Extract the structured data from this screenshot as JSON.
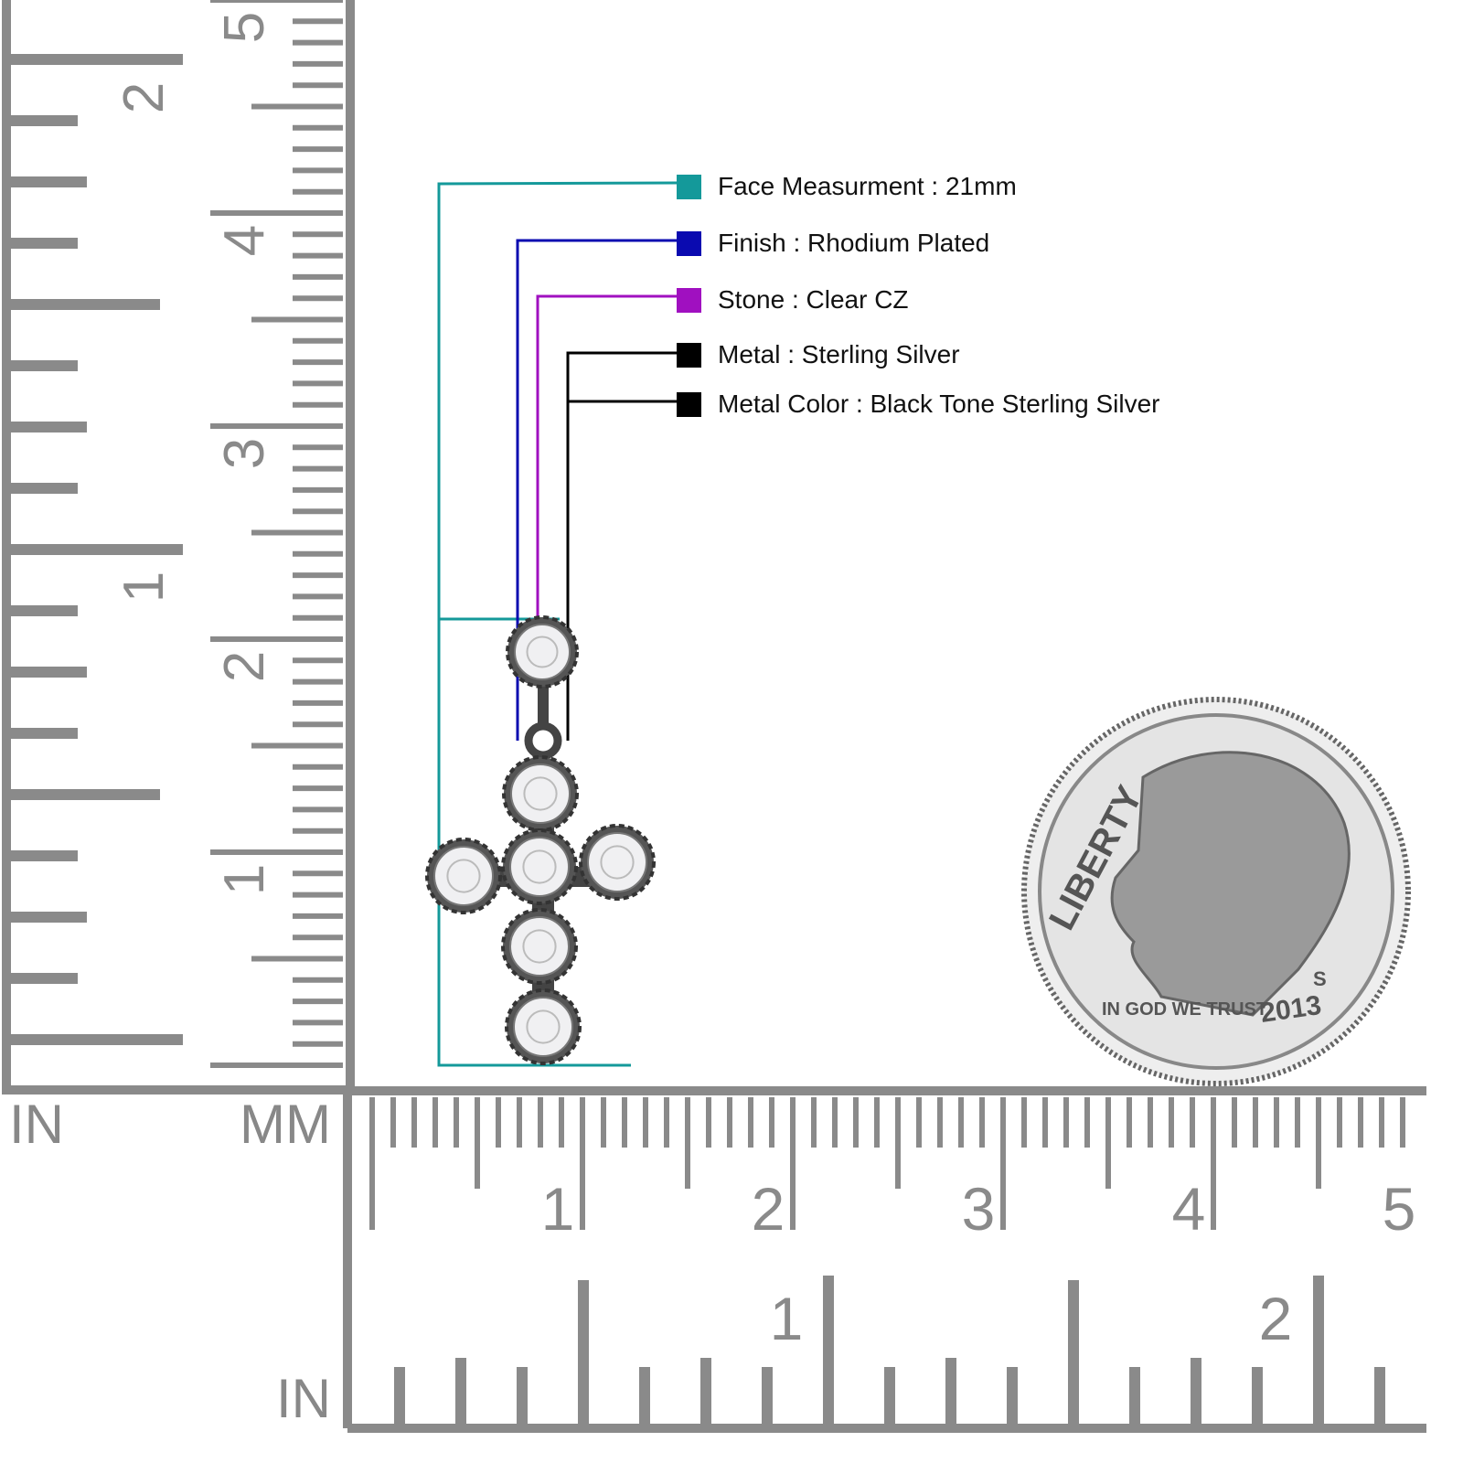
{
  "specs": [
    {
      "label": "Face Measurment : 21mm",
      "color": "#14999a"
    },
    {
      "label": "Finish : Rhodium Plated",
      "color": "#0a0ab0"
    },
    {
      "label": "Stone : Clear CZ",
      "color": "#a010c0"
    },
    {
      "label": "Metal : Sterling Silver",
      "color": "#000000"
    },
    {
      "label": "Metal Color : Black Tone Sterling Silver",
      "color": "#000000"
    }
  ],
  "rulers": {
    "left_unit_in": "IN",
    "left_unit_mm": "MM",
    "bottom_unit_in": "IN",
    "left_mm_labels": [
      "1",
      "2",
      "3",
      "4",
      "5"
    ],
    "left_in_labels": [
      "1",
      "2"
    ],
    "bottom_mm_labels": [
      "1",
      "2",
      "3",
      "4",
      "5"
    ],
    "bottom_in_labels": [
      "1",
      "2"
    ],
    "color": "#8a8a8a"
  },
  "coin": {
    "text_liberty": "LIBERTY",
    "text_motto": "IN GOD WE TRUST",
    "year": "2013",
    "mint": "S"
  }
}
